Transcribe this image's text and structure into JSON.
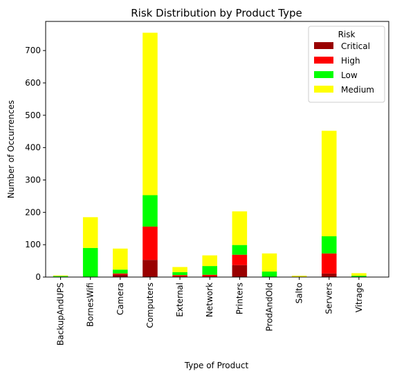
{
  "chart_data": {
    "type": "bar",
    "stacked": true,
    "title": "Risk Distribution by Product Type",
    "xlabel": "Type of Product",
    "ylabel": "Number of Occurrences",
    "categories": [
      "BackupAndUPS",
      "BornesWifi",
      "Camera",
      "Computers",
      "External",
      "Network",
      "Printers",
      "ProdAndOld",
      "Salto",
      "Servers",
      "Vitrage"
    ],
    "ylim": [
      0,
      790
    ],
    "yticks": [
      0,
      100,
      200,
      300,
      400,
      500,
      600,
      700
    ],
    "grid": false,
    "legend": {
      "title": "Risk",
      "placement": "top-right"
    },
    "series": [
      {
        "name": "Critical",
        "color": "#990000",
        "values": [
          0,
          0,
          8,
          53,
          2,
          2,
          37,
          0,
          0,
          11,
          0
        ]
      },
      {
        "name": "High",
        "color": "#ff0000",
        "values": [
          0,
          0,
          3,
          103,
          4,
          5,
          32,
          0,
          0,
          62,
          1
        ]
      },
      {
        "name": "Low",
        "color": "#00ff00",
        "values": [
          3,
          90,
          12,
          97,
          9,
          27,
          30,
          17,
          0,
          53,
          3
        ]
      },
      {
        "name": "Medium",
        "color": "#ffff00",
        "values": [
          2,
          95,
          65,
          502,
          16,
          33,
          104,
          56,
          4,
          326,
          8
        ]
      }
    ]
  }
}
